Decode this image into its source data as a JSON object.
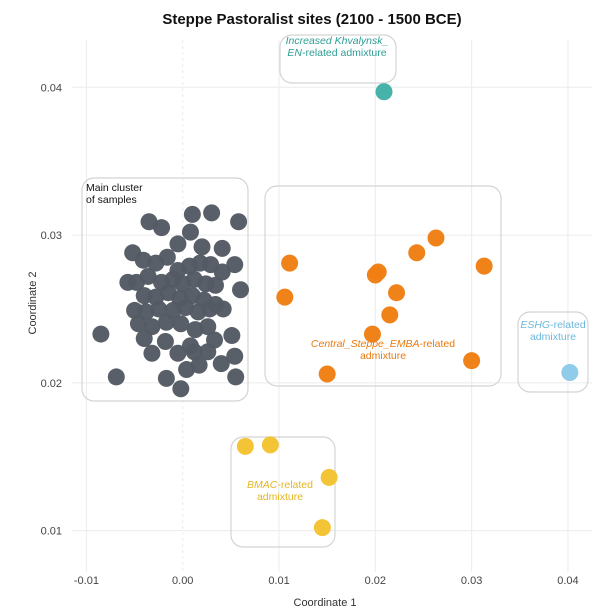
{
  "chart_data": {
    "type": "scatter",
    "title": "Steppe Pastoralist sites (2100 - 1500 BCE)",
    "xlabel": "Coordinate 1",
    "ylabel": "Coordinate 2",
    "xlim": [
      -0.0115,
      0.0425
    ],
    "ylim": [
      0.0072,
      0.0432
    ],
    "xticks": [
      -0.01,
      0.0,
      0.01,
      0.02,
      0.03,
      0.04
    ],
    "xtick_labels": [
      "-0.01",
      "0.00",
      "0.01",
      "0.02",
      "0.03",
      "0.04"
    ],
    "yticks": [
      0.01,
      0.02,
      0.03,
      0.04
    ],
    "ytick_labels": [
      "0.01",
      "0.02",
      "0.03",
      "0.04"
    ],
    "grid": true,
    "legend": "none",
    "series": [
      {
        "color": "#545a63",
        "points": [
          [
            -0.0005,
            0.0294
          ],
          [
            0.001,
            0.0314
          ],
          [
            0.003,
            0.0315
          ],
          [
            0.0058,
            0.0309
          ],
          [
            -0.0035,
            0.0309
          ],
          [
            -0.0022,
            0.0305
          ],
          [
            0.0008,
            0.0302
          ],
          [
            0.002,
            0.0292
          ],
          [
            0.0041,
            0.0291
          ],
          [
            0.0054,
            0.028
          ],
          [
            -0.0052,
            0.0288
          ],
          [
            -0.0041,
            0.0283
          ],
          [
            -0.0028,
            0.0281
          ],
          [
            -0.0016,
            0.0285
          ],
          [
            -0.0005,
            0.0276
          ],
          [
            0.0007,
            0.0279
          ],
          [
            0.0018,
            0.0281
          ],
          [
            0.0029,
            0.028
          ],
          [
            0.0041,
            0.0275
          ],
          [
            -0.0048,
            0.0268
          ],
          [
            -0.0036,
            0.0272
          ],
          [
            -0.0022,
            0.0268
          ],
          [
            -0.001,
            0.027
          ],
          [
            0.0,
            0.0267
          ],
          [
            0.0012,
            0.027
          ],
          [
            0.0024,
            0.0267
          ],
          [
            0.0034,
            0.0266
          ],
          [
            0.006,
            0.0263
          ],
          [
            -0.0057,
            0.0268
          ],
          [
            -0.004,
            0.0259
          ],
          [
            -0.0028,
            0.0258
          ],
          [
            -0.0015,
            0.0261
          ],
          [
            -0.0003,
            0.0257
          ],
          [
            0.001,
            0.0259
          ],
          [
            0.0022,
            0.0256
          ],
          [
            0.0034,
            0.0253
          ],
          [
            -0.005,
            0.0249
          ],
          [
            -0.0038,
            0.0248
          ],
          [
            -0.0025,
            0.025
          ],
          [
            -0.001,
            0.0249
          ],
          [
            0.0003,
            0.0251
          ],
          [
            0.0016,
            0.0248
          ],
          [
            0.0028,
            0.025
          ],
          [
            0.0042,
            0.025
          ],
          [
            -0.0046,
            0.024
          ],
          [
            -0.0032,
            0.0238
          ],
          [
            -0.0017,
            0.0241
          ],
          [
            -0.0002,
            0.024
          ],
          [
            0.0013,
            0.0236
          ],
          [
            0.0026,
            0.0238
          ],
          [
            -0.0085,
            0.0233
          ],
          [
            -0.004,
            0.023
          ],
          [
            -0.0018,
            0.0228
          ],
          [
            0.0008,
            0.0225
          ],
          [
            0.0033,
            0.0229
          ],
          [
            0.0051,
            0.0232
          ],
          [
            -0.0032,
            0.022
          ],
          [
            -0.0005,
            0.022
          ],
          [
            0.0012,
            0.0221
          ],
          [
            0.0026,
            0.0221
          ],
          [
            0.0054,
            0.0218
          ],
          [
            0.0004,
            0.0209
          ],
          [
            -0.0069,
            0.0204
          ],
          [
            -0.0017,
            0.0203
          ],
          [
            0.0055,
            0.0204
          ],
          [
            -0.0002,
            0.0196
          ],
          [
            0.0017,
            0.0212
          ],
          [
            0.004,
            0.0213
          ]
        ]
      },
      {
        "color": "#f07e13",
        "points": [
          [
            0.0111,
            0.0281
          ],
          [
            0.0106,
            0.0258
          ],
          [
            0.0203,
            0.0275
          ],
          [
            0.02,
            0.0273
          ],
          [
            0.0243,
            0.0288
          ],
          [
            0.0263,
            0.0298
          ],
          [
            0.0222,
            0.0261
          ],
          [
            0.0313,
            0.0279
          ],
          [
            0.0215,
            0.0246
          ],
          [
            0.0197,
            0.0233
          ],
          [
            0.015,
            0.0206
          ],
          [
            0.03,
            0.0215
          ]
        ]
      },
      {
        "color": "#40b0a6",
        "points": [
          [
            0.0209,
            0.0397
          ]
        ]
      },
      {
        "color": "#8cc9e8",
        "points": [
          [
            0.0402,
            0.0207
          ]
        ]
      },
      {
        "color": "#f3c22f",
        "points": [
          [
            0.0065,
            0.0157
          ],
          [
            0.0091,
            0.0158
          ],
          [
            0.0152,
            0.0136
          ],
          [
            0.0145,
            0.0102
          ]
        ]
      }
    ],
    "annotations": [
      {
        "name": "main-cluster",
        "lines": [
          [
            "Main cluster"
          ],
          [
            "of samples"
          ]
        ],
        "color": "#111111",
        "align": "start"
      },
      {
        "name": "khvalynsk",
        "lines": [
          [
            "Increased Khvalynsk_",
            true
          ],
          [
            "EN",
            true,
            "-related admixture"
          ]
        ],
        "color": "#2e9e95",
        "align": "middle"
      },
      {
        "name": "central-steppe",
        "lines": [
          [
            "Central_Steppe_EMBA",
            true,
            "-related"
          ],
          [
            "admixture"
          ]
        ],
        "color": "#e87a10",
        "align": "middle"
      },
      {
        "name": "eshg",
        "lines": [
          [
            "ESHG",
            true,
            "-related"
          ],
          [
            "admixture"
          ]
        ],
        "color": "#6db8dc",
        "align": "middle"
      },
      {
        "name": "bmac",
        "lines": [
          [
            "BMAC",
            true,
            "-related"
          ],
          [
            "admixture"
          ]
        ],
        "color": "#e5b51f",
        "align": "middle"
      }
    ]
  }
}
